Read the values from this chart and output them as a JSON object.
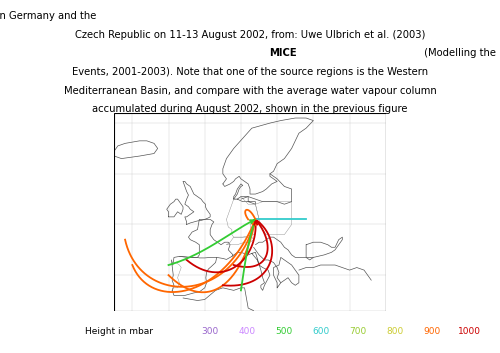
{
  "legend_label": "Height in mbar",
  "legend_values": [
    "300",
    "400",
    "500",
    "600",
    "700",
    "800",
    "900",
    "1000"
  ],
  "legend_colors": [
    "#9966CC",
    "#CC88FF",
    "#33CC33",
    "#33CCCC",
    "#99CC33",
    "#CCCC33",
    "#FF6600",
    "#CC0000"
  ],
  "map_xlim": [
    -25,
    50
  ],
  "map_ylim": [
    33,
    72
  ],
  "background_color": "#ffffff",
  "coastline_color": "#555555",
  "border_color": "#888888",
  "grid_color": "#cccccc",
  "fig_width": 5.0,
  "fig_height": 3.53,
  "dpi": 100,
  "title_fontsize": 7.2,
  "legend_fontsize": 6.5
}
